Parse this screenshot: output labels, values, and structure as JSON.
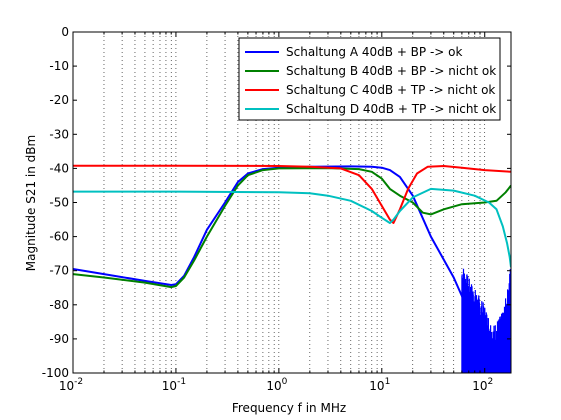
{
  "chart_data": {
    "type": "line",
    "xlabel": "Frequency f in MHz",
    "ylabel": "Magnitude S21 in dBm",
    "xscale": "log",
    "xlim": [
      0.01,
      180
    ],
    "ylim": [
      -100,
      0
    ],
    "grid": "x-minor dotted",
    "legend_position": "top-right",
    "yticks": [
      0,
      -10,
      -20,
      -30,
      -40,
      -50,
      -60,
      -70,
      -80,
      -90,
      -100
    ],
    "ytick_labels": [
      "0",
      "-10",
      "-20",
      "-30",
      "-40",
      "-50",
      "-60",
      "-70",
      "-80",
      "-90",
      "-100"
    ],
    "xticks": [
      0.01,
      0.1,
      1,
      10,
      100
    ],
    "xtick_labels": [
      {
        "base": "10",
        "exp": "-2"
      },
      {
        "base": "10",
        "exp": "-1"
      },
      {
        "base": "10",
        "exp": "0"
      },
      {
        "base": "10",
        "exp": "1"
      },
      {
        "base": "10",
        "exp": "2"
      }
    ],
    "series": [
      {
        "name": "Schaltung A 40dB + BP -> ok",
        "color": "#0000ff",
        "noise_tail": true,
        "points": [
          [
            0.01,
            -69.5
          ],
          [
            0.02,
            -71
          ],
          [
            0.05,
            -73
          ],
          [
            0.09,
            -74.2
          ],
          [
            0.1,
            -74
          ],
          [
            0.12,
            -71.5
          ],
          [
            0.15,
            -66
          ],
          [
            0.2,
            -58
          ],
          [
            0.3,
            -50
          ],
          [
            0.4,
            -44
          ],
          [
            0.5,
            -41.5
          ],
          [
            0.7,
            -40.2
          ],
          [
            1,
            -39.8
          ],
          [
            2,
            -39.5
          ],
          [
            5,
            -39.4
          ],
          [
            8,
            -39.5
          ],
          [
            10,
            -39.8
          ],
          [
            12,
            -40.5
          ],
          [
            15,
            -42.5
          ],
          [
            20,
            -48
          ],
          [
            30,
            -60
          ],
          [
            50,
            -72
          ],
          [
            70,
            -82
          ],
          [
            100,
            -90
          ],
          [
            120,
            -96
          ],
          [
            150,
            -92
          ],
          [
            170,
            -84
          ],
          [
            180,
            -76
          ]
        ]
      },
      {
        "name": "Schaltung B 40dB + BP -> nicht ok",
        "color": "#008000",
        "points": [
          [
            0.01,
            -71
          ],
          [
            0.02,
            -72
          ],
          [
            0.05,
            -73.5
          ],
          [
            0.09,
            -74.8
          ],
          [
            0.1,
            -74.5
          ],
          [
            0.12,
            -72
          ],
          [
            0.15,
            -67
          ],
          [
            0.2,
            -60
          ],
          [
            0.3,
            -51
          ],
          [
            0.4,
            -45
          ],
          [
            0.5,
            -42
          ],
          [
            0.7,
            -40.5
          ],
          [
            1,
            -40
          ],
          [
            3,
            -39.9
          ],
          [
            6,
            -40.2
          ],
          [
            8,
            -41
          ],
          [
            10,
            -43
          ],
          [
            12,
            -46
          ],
          [
            15,
            -48
          ],
          [
            20,
            -50
          ],
          [
            25,
            -53
          ],
          [
            30,
            -53.5
          ],
          [
            40,
            -52
          ],
          [
            60,
            -50.5
          ],
          [
            100,
            -50
          ],
          [
            130,
            -49.5
          ],
          [
            160,
            -47
          ],
          [
            180,
            -45
          ]
        ]
      },
      {
        "name": "Schaltung C 40dB + TP -> nicht ok",
        "color": "#ff0000",
        "points": [
          [
            0.01,
            -39.2
          ],
          [
            0.1,
            -39.2
          ],
          [
            1,
            -39.3
          ],
          [
            2,
            -39.5
          ],
          [
            4,
            -40
          ],
          [
            6,
            -42
          ],
          [
            8,
            -46
          ],
          [
            10,
            -51
          ],
          [
            12,
            -55
          ],
          [
            13,
            -56
          ],
          [
            15,
            -52
          ],
          [
            18,
            -46
          ],
          [
            22,
            -41.5
          ],
          [
            28,
            -39.5
          ],
          [
            40,
            -39.3
          ],
          [
            60,
            -39.8
          ],
          [
            100,
            -40.5
          ],
          [
            180,
            -41
          ]
        ]
      },
      {
        "name": "Schaltung D 40dB + TP -> nicht ok",
        "color": "#00c0c0",
        "points": [
          [
            0.01,
            -46.8
          ],
          [
            0.1,
            -46.8
          ],
          [
            1,
            -47
          ],
          [
            2,
            -47.3
          ],
          [
            3,
            -48
          ],
          [
            5,
            -49.5
          ],
          [
            8,
            -52.5
          ],
          [
            10,
            -54.5
          ],
          [
            12,
            -56
          ],
          [
            13,
            -55
          ],
          [
            15,
            -52.5
          ],
          [
            20,
            -48.5
          ],
          [
            30,
            -46
          ],
          [
            50,
            -46.5
          ],
          [
            80,
            -48
          ],
          [
            110,
            -50
          ],
          [
            130,
            -52
          ],
          [
            150,
            -57
          ],
          [
            165,
            -62
          ],
          [
            175,
            -66
          ],
          [
            180,
            -69
          ]
        ]
      }
    ]
  }
}
